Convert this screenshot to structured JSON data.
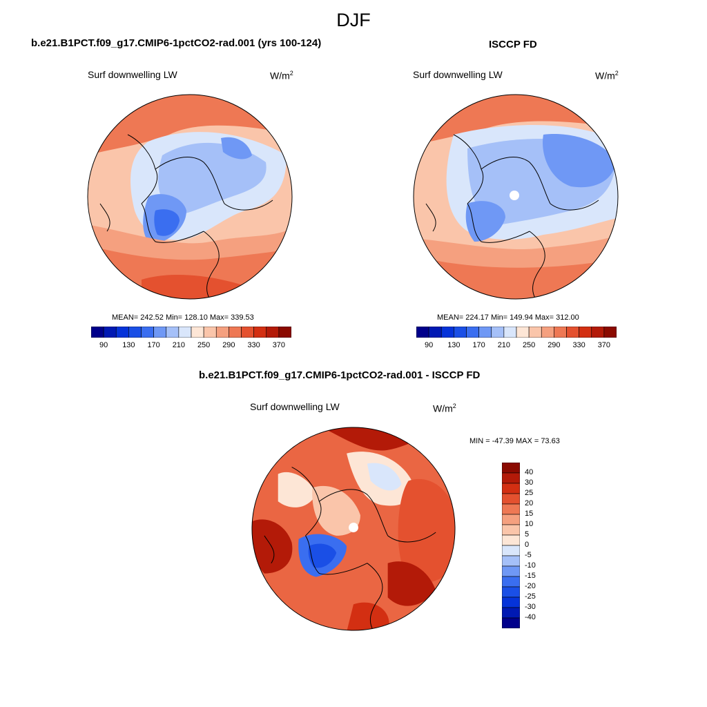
{
  "figure_title": "DJF",
  "panels": [
    {
      "title": "b.e21.B1PCT.f09_g17.CMIP6-1pctCO2-rad.001 (yrs 100-124)",
      "variable": "Surf downwelling LW",
      "units_base": "W/m",
      "units_exp": "2",
      "stats": "MEAN= 242.52  Min= 128.10  Max= 339.53",
      "mean": 242.52,
      "min": 128.1,
      "max": 339.53
    },
    {
      "title": "ISCCP FD",
      "variable": "Surf downwelling LW",
      "units_base": "W/m",
      "units_exp": "2",
      "stats": "MEAN= 224.17  Min= 149.94  Max= 312.00",
      "mean": 224.17,
      "min": 149.94,
      "max": 312.0
    },
    {
      "title": "b.e21.B1PCT.f09_g17.CMIP6-1pctCO2-rad.001 - ISCCP FD",
      "variable": "Surf downwelling LW",
      "units_base": "W/m",
      "units_exp": "2",
      "stats": "MIN = -47.39 MAX =  73.63",
      "min": -47.39,
      "max": 73.63
    }
  ],
  "colorbar_main": {
    "colors": [
      "#00008b",
      "#0019b3",
      "#0533d9",
      "#1a4fe6",
      "#3a6ef0",
      "#6f98f5",
      "#a5c0f8",
      "#d9e6fb",
      "#fde6d6",
      "#fac5aa",
      "#f5a07f",
      "#ee7854",
      "#e4512f",
      "#d32f12",
      "#b31a08",
      "#8b0a00"
    ],
    "tick_labels": [
      "90",
      "130",
      "170",
      "210",
      "250",
      "290",
      "330",
      "370"
    ]
  },
  "colorbar_diff": {
    "colors": [
      "#8b0a00",
      "#b31a08",
      "#d32f12",
      "#e4512f",
      "#ee7854",
      "#f5a07f",
      "#fac5aa",
      "#fde6d6",
      "#d9e6fb",
      "#a5c0f8",
      "#6f98f5",
      "#3a6ef0",
      "#1a4fe6",
      "#0533d9",
      "#0019b3",
      "#00008b"
    ],
    "tick_labels": [
      "40",
      "30",
      "25",
      "20",
      "15",
      "10",
      "5",
      "0",
      "-5",
      "-10",
      "-15",
      "-20",
      "-25",
      "-30",
      "-40"
    ]
  }
}
